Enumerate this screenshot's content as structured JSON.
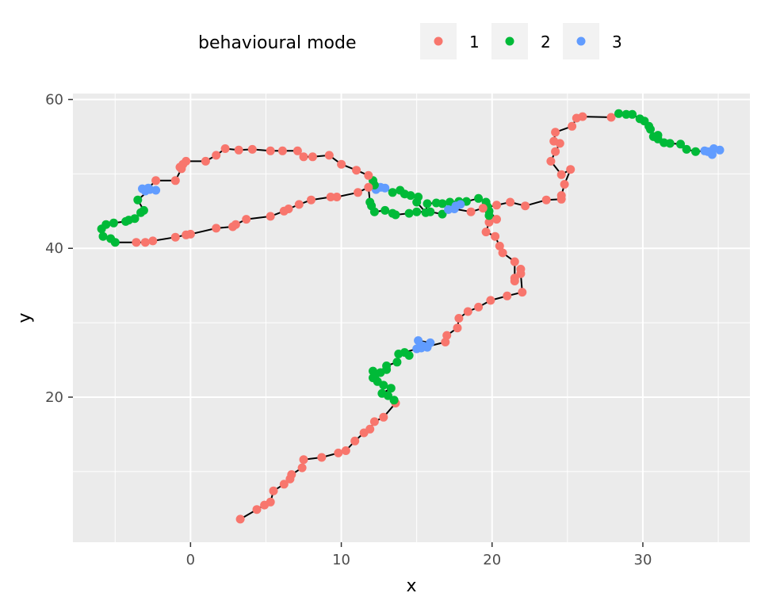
{
  "chart_data": {
    "type": "scatter",
    "subtype": "path with colored points",
    "xlabel": "x",
    "ylabel": "y",
    "xlim": [
      -7.8,
      37.1
    ],
    "ylim": [
      0.5,
      60.8
    ],
    "x_ticks": [
      0,
      10,
      20,
      30
    ],
    "y_ticks": [
      20,
      40,
      60
    ],
    "x_tick_labels": [
      "0",
      "10",
      "20",
      "30"
    ],
    "y_tick_labels": [
      "20",
      "40",
      "60"
    ],
    "grid": true,
    "legend": {
      "title": "behavioural mode",
      "position": "top",
      "entries": [
        {
          "label": "1",
          "color": "#F8766D"
        },
        {
          "label": "2",
          "color": "#00BA38"
        },
        {
          "label": "3",
          "color": "#619CFF"
        }
      ]
    },
    "path_color": "#000000",
    "panel_background": "#EBEBEB",
    "points": [
      [
        3.3,
        3.6,
        1
      ],
      [
        4.4,
        4.9,
        1
      ],
      [
        4.9,
        5.5,
        1
      ],
      [
        5.3,
        5.9,
        1
      ],
      [
        5.5,
        7.4,
        1
      ],
      [
        6.2,
        8.3,
        1
      ],
      [
        6.6,
        9.0,
        1
      ],
      [
        6.7,
        9.6,
        1
      ],
      [
        7.4,
        10.5,
        1
      ],
      [
        7.5,
        11.6,
        1
      ],
      [
        8.7,
        11.9,
        1
      ],
      [
        9.8,
        12.5,
        1
      ],
      [
        10.3,
        12.8,
        1
      ],
      [
        10.9,
        14.1,
        1
      ],
      [
        11.5,
        15.2,
        1
      ],
      [
        11.9,
        15.7,
        1
      ],
      [
        12.2,
        16.7,
        1
      ],
      [
        12.8,
        17.3,
        1
      ],
      [
        13.6,
        19.2,
        1
      ],
      [
        13.5,
        19.6,
        2
      ],
      [
        13.1,
        20.2,
        2
      ],
      [
        13.3,
        21.2,
        2
      ],
      [
        12.7,
        20.5,
        2
      ],
      [
        12.8,
        21.6,
        2
      ],
      [
        12.4,
        22.1,
        2
      ],
      [
        12.1,
        22.6,
        2
      ],
      [
        12.3,
        23.1,
        2
      ],
      [
        12.1,
        23.5,
        2
      ],
      [
        12.6,
        23.3,
        2
      ],
      [
        13.0,
        23.7,
        2
      ],
      [
        13.0,
        24.2,
        2
      ],
      [
        13.7,
        24.7,
        2
      ],
      [
        13.8,
        25.8,
        2
      ],
      [
        14.5,
        25.6,
        2
      ],
      [
        14.2,
        26.0,
        2
      ],
      [
        15.0,
        26.5,
        3
      ],
      [
        15.4,
        26.9,
        3
      ],
      [
        15.9,
        27.3,
        3
      ],
      [
        15.1,
        27.6,
        3
      ],
      [
        15.7,
        26.7,
        3
      ],
      [
        15.3,
        26.6,
        3
      ],
      [
        16.9,
        27.4,
        1
      ],
      [
        17.0,
        28.3,
        1
      ],
      [
        17.7,
        29.3,
        1
      ],
      [
        17.8,
        30.6,
        1
      ],
      [
        18.4,
        31.5,
        1
      ],
      [
        19.1,
        32.1,
        1
      ],
      [
        19.9,
        33.0,
        1
      ],
      [
        21.0,
        33.6,
        1
      ],
      [
        22.0,
        34.1,
        1
      ],
      [
        21.9,
        36.6,
        1
      ],
      [
        21.9,
        37.2,
        1
      ],
      [
        21.5,
        35.6,
        1
      ],
      [
        21.5,
        36.0,
        1
      ],
      [
        21.5,
        38.2,
        1
      ],
      [
        20.7,
        39.4,
        1
      ],
      [
        20.5,
        40.3,
        1
      ],
      [
        20.2,
        41.6,
        1
      ],
      [
        19.6,
        42.2,
        1
      ],
      [
        19.8,
        43.5,
        1
      ],
      [
        19.8,
        44.4,
        2
      ],
      [
        20.3,
        43.9,
        1
      ],
      [
        19.8,
        45.0,
        2
      ],
      [
        19.7,
        45.6,
        2
      ],
      [
        19.6,
        46.2,
        2
      ],
      [
        19.1,
        46.7,
        2
      ],
      [
        18.3,
        46.3,
        2
      ],
      [
        17.8,
        46.3,
        2
      ],
      [
        17.2,
        46.2,
        2
      ],
      [
        16.7,
        46.0,
        2
      ],
      [
        16.3,
        46.1,
        2
      ],
      [
        15.7,
        46.0,
        2
      ],
      [
        15.6,
        44.8,
        2
      ],
      [
        15.0,
        46.2,
        2
      ],
      [
        15.1,
        46.9,
        2
      ],
      [
        14.6,
        47.1,
        2
      ],
      [
        14.2,
        47.3,
        2
      ],
      [
        13.9,
        47.8,
        2
      ],
      [
        13.4,
        47.5,
        2
      ],
      [
        12.9,
        48.1,
        3
      ],
      [
        12.6,
        48.2,
        3
      ],
      [
        12.3,
        47.9,
        3
      ],
      [
        12.1,
        49.1,
        2
      ],
      [
        12.2,
        48.5,
        2
      ],
      [
        11.8,
        49.8,
        1
      ],
      [
        11.0,
        50.5,
        1
      ],
      [
        10.0,
        51.3,
        1
      ],
      [
        9.2,
        52.5,
        1
      ],
      [
        8.1,
        52.3,
        1
      ],
      [
        7.5,
        52.3,
        1
      ],
      [
        7.1,
        53.1,
        1
      ],
      [
        6.1,
        53.1,
        1
      ],
      [
        5.3,
        53.1,
        1
      ],
      [
        4.1,
        53.3,
        1
      ],
      [
        3.2,
        53.2,
        1
      ],
      [
        2.3,
        53.4,
        1
      ],
      [
        1.7,
        52.5,
        1
      ],
      [
        1.0,
        51.7,
        1
      ],
      [
        -0.3,
        51.7,
        1
      ],
      [
        -0.5,
        51.3,
        1
      ],
      [
        -0.7,
        50.9,
        1
      ],
      [
        -0.6,
        50.7,
        1
      ],
      [
        -1.0,
        49.1,
        1
      ],
      [
        -2.3,
        49.1,
        1
      ],
      [
        -2.8,
        48.1,
        3
      ],
      [
        -3.2,
        48.0,
        3
      ],
      [
        -3.0,
        47.7,
        3
      ],
      [
        -2.3,
        47.8,
        3
      ],
      [
        -2.7,
        47.9,
        3
      ],
      [
        -3.5,
        46.5,
        2
      ],
      [
        -3.1,
        45.1,
        2
      ],
      [
        -3.3,
        44.8,
        2
      ],
      [
        -3.7,
        44.0,
        2
      ],
      [
        -4.1,
        43.8,
        2
      ],
      [
        -4.3,
        43.6,
        2
      ],
      [
        -5.1,
        43.4,
        2
      ],
      [
        -5.6,
        43.2,
        2
      ],
      [
        -5.9,
        42.6,
        2
      ],
      [
        -5.8,
        41.6,
        2
      ],
      [
        -5.3,
        41.3,
        2
      ],
      [
        -5.0,
        40.8,
        2
      ],
      [
        -3.6,
        40.8,
        1
      ],
      [
        -3.0,
        40.8,
        1
      ],
      [
        -2.5,
        41.0,
        1
      ],
      [
        -1.0,
        41.5,
        1
      ],
      [
        -0.3,
        41.8,
        1
      ],
      [
        0.0,
        41.9,
        1
      ],
      [
        1.7,
        42.7,
        1
      ],
      [
        2.8,
        42.9,
        1
      ],
      [
        3.0,
        43.2,
        1
      ],
      [
        3.7,
        43.9,
        1
      ],
      [
        5.3,
        44.3,
        1
      ],
      [
        6.2,
        45.0,
        1
      ],
      [
        6.5,
        45.3,
        1
      ],
      [
        7.2,
        45.9,
        1
      ],
      [
        8.0,
        46.5,
        1
      ],
      [
        9.3,
        46.9,
        1
      ],
      [
        9.7,
        46.9,
        1
      ],
      [
        11.1,
        47.5,
        1
      ],
      [
        11.8,
        48.2,
        1
      ],
      [
        11.9,
        46.2,
        2
      ],
      [
        12.0,
        45.7,
        2
      ],
      [
        12.2,
        44.9,
        2
      ],
      [
        12.9,
        45.1,
        2
      ],
      [
        13.4,
        44.7,
        2
      ],
      [
        13.6,
        44.5,
        2
      ],
      [
        14.5,
        44.7,
        2
      ],
      [
        15.0,
        44.9,
        2
      ],
      [
        15.9,
        44.9,
        2
      ],
      [
        16.7,
        44.6,
        2
      ],
      [
        17.1,
        45.2,
        3
      ],
      [
        17.6,
        45.7,
        3
      ],
      [
        17.9,
        45.9,
        3
      ],
      [
        17.5,
        45.3,
        3
      ],
      [
        18.6,
        44.9,
        1
      ],
      [
        19.4,
        45.4,
        1
      ],
      [
        20.3,
        45.8,
        1
      ],
      [
        21.2,
        46.2,
        1
      ],
      [
        22.2,
        45.7,
        1
      ],
      [
        23.6,
        46.5,
        1
      ],
      [
        24.6,
        46.6,
        1
      ],
      [
        24.6,
        47.1,
        1
      ],
      [
        24.8,
        48.6,
        1
      ],
      [
        25.2,
        50.6,
        1
      ],
      [
        24.6,
        49.9,
        1
      ],
      [
        23.9,
        51.7,
        1
      ],
      [
        24.2,
        53.0,
        1
      ],
      [
        24.5,
        54.1,
        1
      ],
      [
        24.1,
        54.4,
        1
      ],
      [
        24.2,
        55.6,
        1
      ],
      [
        25.3,
        56.4,
        1
      ],
      [
        25.6,
        57.5,
        1
      ],
      [
        26.0,
        57.7,
        1
      ],
      [
        27.9,
        57.6,
        1
      ],
      [
        28.4,
        58.1,
        2
      ],
      [
        28.9,
        58.0,
        2
      ],
      [
        29.3,
        58.0,
        2
      ],
      [
        29.8,
        57.4,
        2
      ],
      [
        30.1,
        57.1,
        2
      ],
      [
        30.4,
        56.4,
        2
      ],
      [
        30.5,
        56.0,
        2
      ],
      [
        30.7,
        55.0,
        2
      ],
      [
        31.0,
        54.7,
        2
      ],
      [
        31.0,
        55.2,
        2
      ],
      [
        31.4,
        54.2,
        2
      ],
      [
        31.8,
        54.1,
        2
      ],
      [
        32.5,
        54.0,
        2
      ],
      [
        32.9,
        53.3,
        2
      ],
      [
        33.5,
        53.0,
        2
      ],
      [
        34.1,
        53.1,
        3
      ],
      [
        34.5,
        52.9,
        3
      ],
      [
        34.7,
        53.4,
        3
      ],
      [
        34.6,
        52.6,
        3
      ],
      [
        34.3,
        53.0,
        3
      ],
      [
        35.1,
        53.2,
        3
      ]
    ]
  }
}
